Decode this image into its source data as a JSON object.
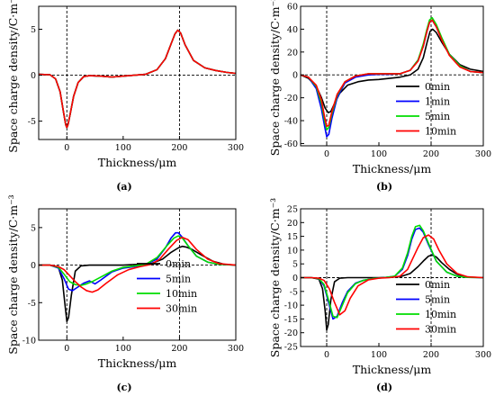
{
  "chart_data": [
    {
      "type": "line",
      "panel_label": "(a)",
      "xlabel": "Thickness/μm",
      "ylabel": "Space charge density/C·m⁻³",
      "xlim": [
        -50,
        300
      ],
      "ylim": [
        -7,
        7.5
      ],
      "xticks": [
        0,
        100,
        200,
        300
      ],
      "yticks": [
        -5,
        0,
        5
      ],
      "reference_lines_x": [
        0,
        200
      ],
      "legend_position": "none",
      "series": [
        {
          "name": "0min",
          "color": "#000000",
          "x": [
            -50,
            -30,
            -20,
            -12,
            -6,
            -2,
            0,
            2,
            6,
            12,
            20,
            30,
            40,
            60,
            80,
            100,
            120,
            140,
            160,
            175,
            185,
            192,
            197,
            202,
            210,
            225,
            245,
            265,
            285,
            300
          ],
          "y": [
            0.1,
            0.05,
            -0.4,
            -1.8,
            -4.0,
            -5.4,
            -5.7,
            -5.4,
            -4.2,
            -2.3,
            -0.8,
            -0.15,
            -0.05,
            -0.1,
            -0.2,
            -0.1,
            0.0,
            0.1,
            0.6,
            1.8,
            3.4,
            4.5,
            4.9,
            4.6,
            3.3,
            1.6,
            0.8,
            0.5,
            0.3,
            0.2
          ]
        },
        {
          "name": "1min",
          "color": "#0000ff",
          "x": [
            -50,
            -30,
            -20,
            -12,
            -6,
            -2,
            0,
            2,
            6,
            12,
            20,
            30,
            40,
            60,
            80,
            100,
            120,
            140,
            160,
            175,
            185,
            192,
            197,
            202,
            210,
            225,
            245,
            265,
            285,
            300
          ],
          "y": [
            0.1,
            0.05,
            -0.4,
            -1.8,
            -4.0,
            -5.4,
            -5.7,
            -5.4,
            -4.2,
            -2.3,
            -0.8,
            -0.15,
            -0.05,
            -0.1,
            -0.2,
            -0.1,
            0.0,
            0.1,
            0.6,
            1.8,
            3.4,
            4.5,
            4.9,
            4.6,
            3.3,
            1.6,
            0.8,
            0.5,
            0.3,
            0.2
          ]
        },
        {
          "name": "5min",
          "color": "#00dd00",
          "x": [
            -50,
            -30,
            -20,
            -12,
            -6,
            -2,
            0,
            2,
            6,
            12,
            20,
            30,
            40,
            60,
            80,
            100,
            120,
            140,
            160,
            175,
            185,
            192,
            197,
            202,
            210,
            225,
            245,
            265,
            285,
            300
          ],
          "y": [
            0.1,
            0.05,
            -0.4,
            -1.8,
            -4.0,
            -5.4,
            -5.7,
            -5.4,
            -4.2,
            -2.3,
            -0.8,
            -0.15,
            -0.05,
            -0.1,
            -0.2,
            -0.1,
            0.0,
            0.1,
            0.6,
            1.8,
            3.4,
            4.5,
            4.9,
            4.6,
            3.3,
            1.6,
            0.8,
            0.5,
            0.3,
            0.2
          ]
        },
        {
          "name": "10min",
          "color": "#ff0000",
          "x": [
            -50,
            -30,
            -20,
            -12,
            -6,
            -2,
            0,
            2,
            6,
            12,
            20,
            30,
            40,
            60,
            80,
            100,
            120,
            140,
            160,
            175,
            185,
            192,
            197,
            202,
            210,
            225,
            245,
            265,
            285,
            300
          ],
          "y": [
            0.1,
            0.05,
            -0.4,
            -1.8,
            -4.0,
            -5.4,
            -5.7,
            -5.4,
            -4.2,
            -2.3,
            -0.8,
            -0.15,
            -0.05,
            -0.1,
            -0.2,
            -0.1,
            0.0,
            0.1,
            0.6,
            1.8,
            3.4,
            4.5,
            4.9,
            4.6,
            3.3,
            1.6,
            0.8,
            0.5,
            0.3,
            0.2
          ]
        }
      ]
    },
    {
      "type": "line",
      "panel_label": "(b)",
      "xlabel": "Thickness/μm",
      "ylabel": "Space charge density/C·m⁻³",
      "xlim": [
        -50,
        300
      ],
      "ylim": [
        -62,
        60
      ],
      "xticks": [
        0,
        100,
        200,
        300
      ],
      "yticks": [
        -60,
        -40,
        -20,
        0,
        20,
        40,
        60
      ],
      "reference_lines_x": [
        0,
        200
      ],
      "legend_position": "right",
      "series": [
        {
          "name": "0min",
          "color": "#000000",
          "x": [
            -50,
            -35,
            -20,
            -10,
            -3,
            3,
            8,
            15,
            25,
            40,
            60,
            80,
            100,
            120,
            140,
            160,
            175,
            185,
            192,
            198,
            203,
            210,
            220,
            235,
            255,
            275,
            300
          ],
          "y": [
            0,
            -3,
            -10,
            -20,
            -29,
            -33,
            -32,
            -25,
            -16,
            -9,
            -6,
            -4.5,
            -4,
            -3,
            -2,
            0,
            5,
            15,
            28,
            38,
            40,
            37,
            29,
            18,
            9,
            5,
            3
          ]
        },
        {
          "name": "1min",
          "color": "#0000ff",
          "x": [
            -50,
            -35,
            -20,
            -10,
            -4,
            0,
            4,
            10,
            20,
            35,
            55,
            80,
            100,
            120,
            140,
            160,
            175,
            185,
            192,
            197,
            202,
            210,
            220,
            235,
            255,
            275,
            300
          ],
          "y": [
            0,
            -2,
            -12,
            -30,
            -45,
            -54,
            -52,
            -38,
            -20,
            -7,
            -2,
            0,
            0.5,
            0.5,
            1,
            4,
            13,
            25,
            38,
            46,
            48,
            42,
            32,
            18,
            8,
            3,
            2
          ]
        },
        {
          "name": "5min",
          "color": "#00dd00",
          "x": [
            -50,
            -35,
            -20,
            -10,
            -4,
            0,
            4,
            10,
            20,
            35,
            55,
            80,
            100,
            120,
            140,
            160,
            175,
            185,
            192,
            197,
            202,
            210,
            220,
            235,
            255,
            275,
            300
          ],
          "y": [
            0,
            -2,
            -10,
            -25,
            -40,
            -48,
            -46,
            -34,
            -18,
            -6,
            -1,
            1,
            1,
            1,
            1,
            4,
            13,
            27,
            40,
            48,
            50,
            44,
            33,
            18,
            8,
            3,
            2
          ]
        },
        {
          "name": "10min",
          "color": "#ff0000",
          "x": [
            -50,
            -35,
            -20,
            -10,
            -4,
            0,
            4,
            10,
            20,
            35,
            55,
            80,
            100,
            120,
            140,
            160,
            175,
            185,
            192,
            197,
            202,
            210,
            220,
            235,
            255,
            275,
            300
          ],
          "y": [
            0,
            -2,
            -9,
            -22,
            -37,
            -45,
            -44,
            -32,
            -17,
            -6,
            -1,
            1,
            1,
            1,
            1,
            4,
            12,
            25,
            38,
            46,
            48,
            42,
            31,
            17,
            7,
            3,
            2
          ]
        }
      ]
    },
    {
      "type": "line",
      "panel_label": "(c)",
      "xlabel": "Thickness/μm",
      "ylabel": "Space charge density/C·m⁻³",
      "xlim": [
        -50,
        300
      ],
      "ylim": [
        -10,
        7.5
      ],
      "xticks": [
        0,
        100,
        200,
        300
      ],
      "yticks": [
        -10,
        -5,
        0,
        5
      ],
      "reference_lines_x": [
        0,
        200
      ],
      "legend_position": "right",
      "series": [
        {
          "name": "0min",
          "color": "#000000",
          "x": [
            -50,
            -30,
            -15,
            -8,
            -3,
            0,
            3,
            8,
            15,
            25,
            40,
            60,
            100,
            150,
            170,
            185,
            198,
            205,
            212,
            222,
            240,
            260,
            280,
            300
          ],
          "y": [
            0,
            0,
            -0.3,
            -2,
            -5.5,
            -7.5,
            -7,
            -4,
            -0.8,
            -0.1,
            0,
            0,
            0,
            0.2,
            0.8,
            1.7,
            2.3,
            2.5,
            2.4,
            2.1,
            1.3,
            0.5,
            0.1,
            0
          ]
        },
        {
          "name": "5min",
          "color": "#0000ff",
          "x": [
            -50,
            -30,
            -15,
            -5,
            3,
            10,
            20,
            30,
            40,
            50,
            60,
            80,
            100,
            120,
            140,
            160,
            175,
            185,
            193,
            198,
            205,
            215,
            230,
            250,
            270,
            300
          ],
          "y": [
            0,
            0,
            -0.4,
            -1.8,
            -3.2,
            -3.4,
            -2.9,
            -2.4,
            -2.1,
            -2.5,
            -2.0,
            -0.9,
            -0.4,
            -0.2,
            0.1,
            0.8,
            2.3,
            3.6,
            4.3,
            4.3,
            3.7,
            2.6,
            1.2,
            0.4,
            0.1,
            0
          ]
        },
        {
          "name": "10min",
          "color": "#00dd00",
          "x": [
            -50,
            -30,
            -15,
            -5,
            5,
            15,
            25,
            35,
            45,
            60,
            80,
            100,
            120,
            140,
            160,
            178,
            190,
            198,
            205,
            215,
            230,
            250,
            270,
            300
          ],
          "y": [
            0,
            0,
            -0.3,
            -1.2,
            -2.2,
            -2.6,
            -2.7,
            -2.5,
            -2.2,
            -1.6,
            -0.8,
            -0.3,
            -0.1,
            0.1,
            1.0,
            2.6,
            3.6,
            3.9,
            3.6,
            2.6,
            1.2,
            0.4,
            0.1,
            0
          ]
        },
        {
          "name": "30min",
          "color": "#ff0000",
          "x": [
            -50,
            -30,
            -15,
            -5,
            5,
            15,
            25,
            35,
            45,
            55,
            70,
            90,
            110,
            130,
            150,
            165,
            180,
            195,
            205,
            215,
            230,
            250,
            270,
            300
          ],
          "y": [
            0,
            0,
            -0.2,
            -0.6,
            -1.4,
            -2.2,
            -2.9,
            -3.4,
            -3.6,
            -3.3,
            -2.4,
            -1.3,
            -0.6,
            -0.2,
            0.1,
            0.8,
            2.1,
            3.3,
            3.7,
            3.4,
            2.1,
            0.8,
            0.2,
            0
          ]
        }
      ]
    },
    {
      "type": "line",
      "panel_label": "(d)",
      "xlabel": "Thickness/μm",
      "ylabel": "Space charge density/C·m⁻³",
      "xlim": [
        -50,
        300
      ],
      "ylim": [
        -25,
        25
      ],
      "xticks": [
        0,
        100,
        200,
        300
      ],
      "yticks": [
        -25,
        -20,
        -15,
        -10,
        -5,
        0,
        5,
        10,
        15,
        20,
        25
      ],
      "reference_lines_x": [
        0,
        200
      ],
      "legend_position": "right",
      "series": [
        {
          "name": "0min",
          "color": "#000000",
          "x": [
            -50,
            -30,
            -15,
            -8,
            -3,
            0,
            3,
            8,
            15,
            25,
            40,
            60,
            100,
            140,
            160,
            175,
            185,
            195,
            202,
            210,
            220,
            235,
            250,
            270,
            300
          ],
          "y": [
            0,
            0,
            -0.5,
            -4,
            -12,
            -19,
            -17,
            -8,
            -1.5,
            -0.2,
            0,
            0,
            0,
            0.3,
            1.5,
            4,
            6,
            7.8,
            8.2,
            7.5,
            5.5,
            3,
            1.2,
            0.2,
            0
          ]
        },
        {
          "name": "5min",
          "color": "#0000ff",
          "x": [
            -50,
            -30,
            -15,
            -5,
            5,
            12,
            20,
            30,
            40,
            55,
            70,
            90,
            110,
            130,
            145,
            155,
            163,
            170,
            178,
            185,
            195,
            210,
            230,
            250,
            270,
            300
          ],
          "y": [
            0,
            0,
            -0.3,
            -3,
            -10,
            -15,
            -14,
            -9,
            -5,
            -2,
            -1,
            -0.3,
            0,
            0.5,
            3,
            8,
            14,
            17.5,
            18,
            16.5,
            12,
            6,
            2,
            0.5,
            0.1,
            0
          ]
        },
        {
          "name": "10min",
          "color": "#00dd00",
          "x": [
            -50,
            -30,
            -15,
            -5,
            5,
            12,
            20,
            30,
            40,
            55,
            70,
            90,
            110,
            130,
            145,
            155,
            163,
            170,
            178,
            185,
            195,
            210,
            230,
            250,
            270,
            300
          ],
          "y": [
            0,
            0,
            -0.3,
            -2.5,
            -9,
            -14,
            -14.5,
            -10,
            -5.5,
            -2.2,
            -1,
            -0.3,
            0,
            0.5,
            3.5,
            9,
            15,
            18.5,
            19,
            17,
            12.5,
            6,
            2,
            0.5,
            0.1,
            0
          ]
        },
        {
          "name": "30min",
          "color": "#ff0000",
          "x": [
            -50,
            -30,
            -15,
            -5,
            5,
            15,
            25,
            35,
            45,
            60,
            80,
            100,
            120,
            140,
            155,
            165,
            175,
            185,
            195,
            205,
            215,
            230,
            250,
            270,
            300
          ],
          "y": [
            0,
            0,
            -0.2,
            -1,
            -4,
            -9,
            -13.5,
            -12,
            -7.5,
            -3,
            -0.8,
            -0.2,
            0,
            0.5,
            3,
            7,
            11,
            14.5,
            15.5,
            14,
            10,
            5,
            1.5,
            0.3,
            0
          ]
        }
      ]
    }
  ]
}
